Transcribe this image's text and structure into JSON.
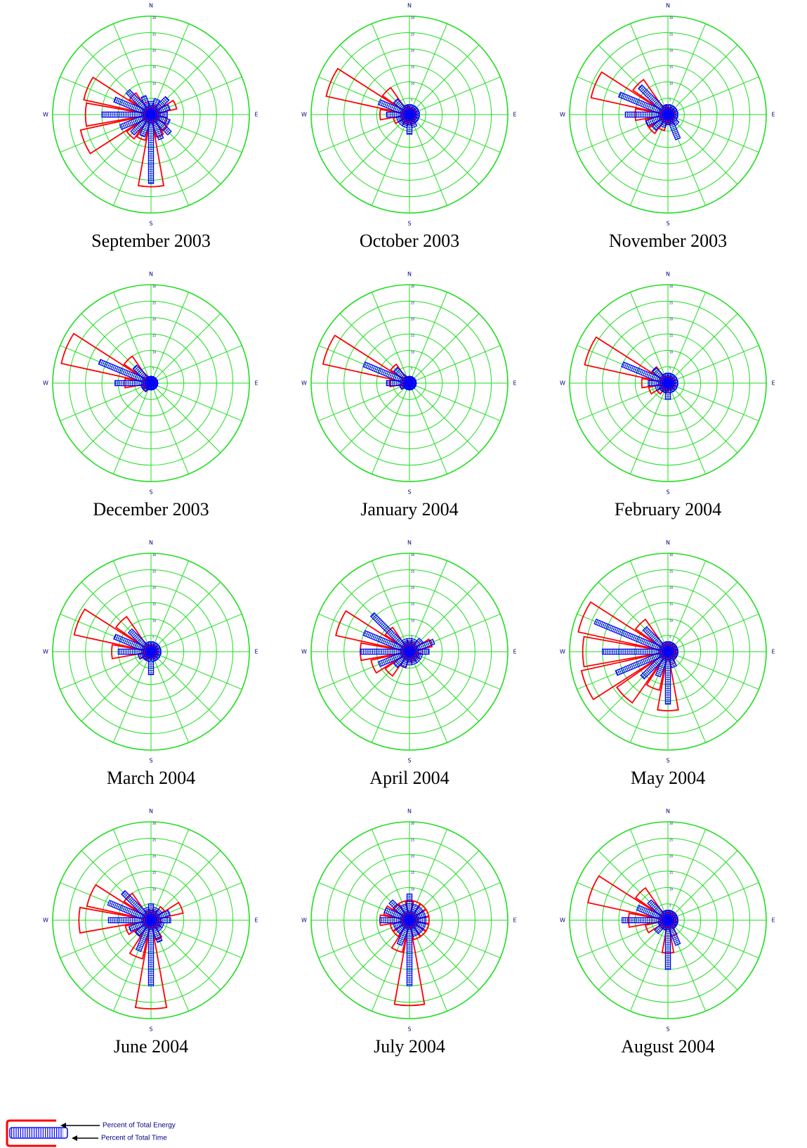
{
  "chart_data": [
    {
      "type": "wind-rose",
      "title": "September 2003",
      "directions": [
        "N",
        "E",
        "S",
        "W"
      ],
      "rlim": [
        0,
        30
      ],
      "rticks": [
        5,
        10,
        15,
        20,
        25,
        30
      ],
      "series": [
        {
          "name": "Percent of Total Energy",
          "color": "#ff0000",
          "values": [
            2,
            3,
            4,
            8,
            4,
            5,
            6,
            7,
            22,
            8,
            9,
            22,
            20,
            21,
            8,
            4
          ]
        },
        {
          "name": "Percent of Total Time",
          "color": "#0000ff",
          "values": [
            4,
            5,
            7,
            6,
            5,
            6,
            8,
            8,
            21,
            7,
            8,
            10,
            15,
            12,
            10,
            6
          ]
        }
      ]
    },
    {
      "type": "wind-rose",
      "title": "October 2003",
      "directions": [
        "N",
        "E",
        "S",
        "W"
      ],
      "rlim": [
        0,
        30
      ],
      "rticks": [
        5,
        10,
        15,
        20,
        25,
        30
      ],
      "series": [
        {
          "name": "Percent of Total Energy",
          "color": "#ff0000",
          "values": [
            2,
            2,
            2,
            2,
            2,
            2,
            2,
            3,
            3,
            3,
            3,
            5,
            9,
            26,
            10,
            3
          ]
        },
        {
          "name": "Percent of Total Time",
          "color": "#0000ff",
          "values": [
            3,
            3,
            3,
            3,
            3,
            3,
            3,
            4,
            6,
            4,
            4,
            4,
            7,
            10,
            6,
            3
          ]
        }
      ]
    },
    {
      "type": "wind-rose",
      "title": "November 2003",
      "directions": [
        "N",
        "E",
        "S",
        "W"
      ],
      "rlim": [
        0,
        30
      ],
      "rticks": [
        5,
        10,
        15,
        20,
        25,
        30
      ],
      "series": [
        {
          "name": "Percent of Total Energy",
          "color": "#ff0000",
          "values": [
            2,
            2,
            2,
            2,
            2,
            2,
            2,
            3,
            3,
            5,
            7,
            7,
            10,
            24,
            13,
            3
          ]
        },
        {
          "name": "Percent of Total Time",
          "color": "#0000ff",
          "values": [
            3,
            3,
            3,
            3,
            3,
            3,
            4,
            8,
            3,
            4,
            6,
            7,
            13,
            16,
            12,
            3
          ]
        }
      ]
    },
    {
      "type": "wind-rose",
      "title": "December 2003",
      "directions": [
        "N",
        "E",
        "S",
        "W"
      ],
      "rlim": [
        0,
        30
      ],
      "rticks": [
        5,
        10,
        15,
        20,
        25,
        30
      ],
      "series": [
        {
          "name": "Percent of Total Energy",
          "color": "#ff0000",
          "values": [
            2,
            2,
            2,
            2,
            2,
            2,
            2,
            2,
            2,
            2,
            3,
            3,
            8,
            28,
            10,
            2
          ]
        },
        {
          "name": "Percent of Total Time",
          "color": "#0000ff",
          "values": [
            2,
            2,
            2,
            2,
            2,
            2,
            2,
            2,
            2,
            2,
            3,
            3,
            11,
            17,
            7,
            2
          ]
        }
      ]
    },
    {
      "type": "wind-rose",
      "title": "January 2004",
      "directions": [
        "N",
        "E",
        "S",
        "W"
      ],
      "rlim": [
        0,
        30
      ],
      "rticks": [
        5,
        10,
        15,
        20,
        25,
        30
      ],
      "series": [
        {
          "name": "Percent of Total Energy",
          "color": "#ff0000",
          "values": [
            2,
            2,
            2,
            2,
            2,
            2,
            2,
            2,
            2,
            2,
            2,
            3,
            6,
            27,
            7,
            2
          ]
        },
        {
          "name": "Percent of Total Time",
          "color": "#0000ff",
          "values": [
            2,
            2,
            2,
            2,
            2,
            2,
            2,
            2,
            2,
            2,
            2,
            3,
            7,
            15,
            6,
            2
          ]
        }
      ]
    },
    {
      "type": "wind-rose",
      "title": "February 2004",
      "directions": [
        "N",
        "E",
        "S",
        "W"
      ],
      "rlim": [
        0,
        30
      ],
      "rticks": [
        5,
        10,
        15,
        20,
        25,
        30
      ],
      "series": [
        {
          "name": "Percent of Total Energy",
          "color": "#ff0000",
          "values": [
            2,
            2,
            2,
            2,
            2,
            2,
            2,
            2,
            2,
            3,
            4,
            6,
            8,
            26,
            6,
            2
          ]
        },
        {
          "name": "Percent of Total Time",
          "color": "#0000ff",
          "values": [
            3,
            3,
            3,
            3,
            3,
            3,
            3,
            3,
            5,
            3,
            3,
            4,
            6,
            15,
            6,
            3
          ]
        }
      ]
    },
    {
      "type": "wind-rose",
      "title": "March 2004",
      "directions": [
        "N",
        "E",
        "S",
        "W"
      ],
      "rlim": [
        0,
        30
      ],
      "rticks": [
        5,
        10,
        15,
        20,
        25,
        30
      ],
      "series": [
        {
          "name": "Percent of Total Energy",
          "color": "#ff0000",
          "values": [
            2,
            2,
            2,
            2,
            2,
            2,
            2,
            2,
            2,
            2,
            3,
            4,
            12,
            24,
            13,
            2
          ]
        },
        {
          "name": "Percent of Total Time",
          "color": "#0000ff",
          "values": [
            3,
            3,
            3,
            3,
            3,
            3,
            3,
            3,
            7,
            3,
            3,
            4,
            10,
            12,
            9,
            3
          ]
        }
      ]
    },
    {
      "type": "wind-rose",
      "title": "April 2004",
      "directions": [
        "N",
        "E",
        "S",
        "W"
      ],
      "rlim": [
        0,
        30
      ],
      "rticks": [
        5,
        10,
        15,
        20,
        25,
        30
      ],
      "series": [
        {
          "name": "Percent of Total Energy",
          "color": "#ff0000",
          "values": [
            3,
            3,
            4,
            7,
            4,
            3,
            3,
            3,
            3,
            5,
            9,
            12,
            15,
            23,
            9,
            3
          ]
        },
        {
          "name": "Percent of Total Time",
          "color": "#0000ff",
          "values": [
            4,
            4,
            5,
            8,
            6,
            4,
            4,
            4,
            4,
            5,
            6,
            10,
            15,
            15,
            16,
            4
          ]
        }
      ]
    },
    {
      "type": "wind-rose",
      "title": "May 2004",
      "directions": [
        "N",
        "E",
        "S",
        "W"
      ],
      "rlim": [
        0,
        30
      ],
      "rticks": [
        5,
        10,
        15,
        20,
        25,
        30
      ],
      "series": [
        {
          "name": "Percent of Total Energy",
          "color": "#ff0000",
          "values": [
            3,
            3,
            3,
            3,
            3,
            3,
            3,
            4,
            18,
            12,
            19,
            27,
            26,
            28,
            12,
            3
          ]
        },
        {
          "name": "Percent of Total Time",
          "color": "#0000ff",
          "values": [
            3,
            3,
            3,
            3,
            3,
            3,
            3,
            5,
            16,
            8,
            11,
            17,
            20,
            24,
            10,
            3
          ]
        }
      ]
    },
    {
      "type": "wind-rose",
      "title": "June 2004",
      "directions": [
        "N",
        "E",
        "S",
        "W"
      ],
      "rlim": [
        0,
        30
      ],
      "rticks": [
        5,
        10,
        15,
        20,
        25,
        30
      ],
      "series": [
        {
          "name": "Percent of Total Energy",
          "color": "#ff0000",
          "values": [
            3,
            3,
            5,
            10,
            3,
            3,
            3,
            6,
            27,
            12,
            6,
            8,
            22,
            20,
            10,
            3
          ]
        },
        {
          "name": "Percent of Total Time",
          "color": "#0000ff",
          "values": [
            5,
            4,
            4,
            6,
            6,
            4,
            4,
            7,
            20,
            10,
            6,
            7,
            13,
            14,
            12,
            4
          ]
        }
      ]
    },
    {
      "type": "wind-rose",
      "title": "July 2004",
      "directions": [
        "N",
        "E",
        "S",
        "W"
      ],
      "rlim": [
        0,
        30
      ],
      "rticks": [
        5,
        10,
        15,
        20,
        25,
        30
      ],
      "series": [
        {
          "name": "Percent of Total Energy",
          "color": "#ff0000",
          "values": [
            6,
            6,
            6,
            6,
            6,
            6,
            6,
            6,
            26,
            10,
            6,
            6,
            9,
            8,
            6,
            6
          ]
        },
        {
          "name": "Percent of Total Time",
          "color": "#0000ff",
          "values": [
            8,
            5,
            5,
            5,
            5,
            5,
            5,
            5,
            20,
            8,
            5,
            5,
            9,
            8,
            8,
            5
          ]
        }
      ]
    },
    {
      "type": "wind-rose",
      "title": "August 2004",
      "directions": [
        "N",
        "E",
        "S",
        "W"
      ],
      "rlim": [
        0,
        30
      ],
      "rticks": [
        5,
        10,
        15,
        20,
        25,
        30
      ],
      "series": [
        {
          "name": "Percent of Total Energy",
          "color": "#ff0000",
          "values": [
            3,
            3,
            3,
            3,
            3,
            3,
            3,
            5,
            10,
            3,
            3,
            7,
            12,
            25,
            12,
            3
          ]
        },
        {
          "name": "Percent of Total Time",
          "color": "#0000ff",
          "values": [
            3,
            3,
            3,
            3,
            3,
            3,
            3,
            8,
            15,
            3,
            5,
            3,
            14,
            10,
            8,
            3
          ]
        }
      ]
    }
  ]
}
